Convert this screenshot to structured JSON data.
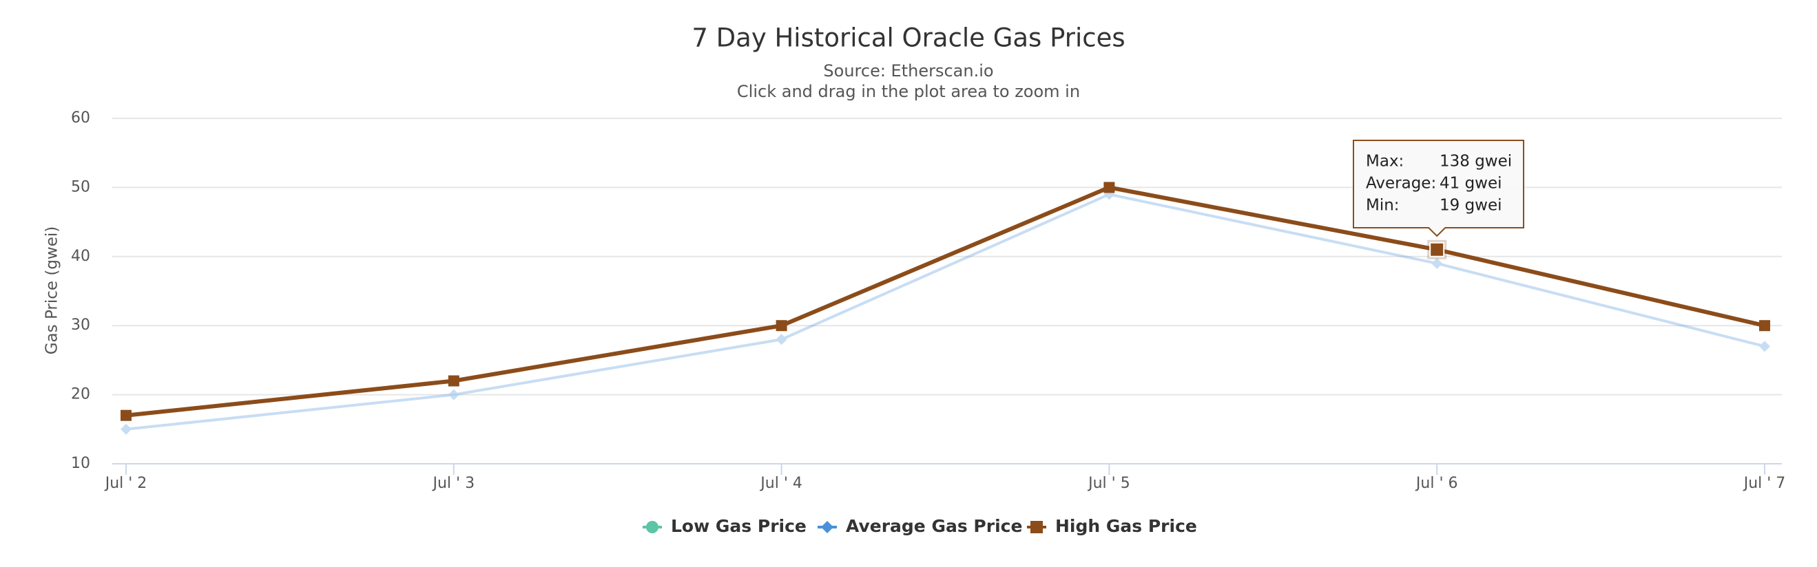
{
  "chart_data": {
    "type": "line",
    "title": "7 Day Historical Oracle Gas Prices",
    "subtitle": [
      "Source: Etherscan.io",
      "Click and drag in the plot area to zoom in"
    ],
    "y_label": "Gas Price (gwei)",
    "categories": [
      "Jul ' 2",
      "Jul ' 3",
      "Jul ' 4",
      "Jul ' 5",
      "Jul ' 6",
      "Jul ' 7"
    ],
    "series": [
      {
        "name": "Low Gas Price",
        "color": "#5cc5a6",
        "marker": "circle",
        "opacity": 1,
        "values": [
          null,
          null,
          null,
          null,
          null,
          null
        ]
      },
      {
        "name": "Average Gas Price",
        "color": "#4a90d9",
        "marker": "diamond",
        "opacity": 0.3,
        "values": [
          15,
          20,
          28,
          49,
          39,
          27
        ]
      },
      {
        "name": "High Gas Price",
        "color": "#8b4c1a",
        "marker": "square",
        "opacity": 1,
        "values": [
          17,
          22,
          30,
          50,
          41,
          30
        ]
      }
    ],
    "ylim": [
      10,
      60
    ],
    "yticks": [
      10,
      20,
      30,
      40,
      50,
      60
    ],
    "grid": true,
    "tooltip": {
      "category": 4,
      "rows": [
        {
          "label": "Max:",
          "value": "138 gwei"
        },
        {
          "label": "Average:",
          "value": "41 gwei"
        },
        {
          "label": "Min:",
          "value": "19 gwei"
        }
      ]
    }
  }
}
